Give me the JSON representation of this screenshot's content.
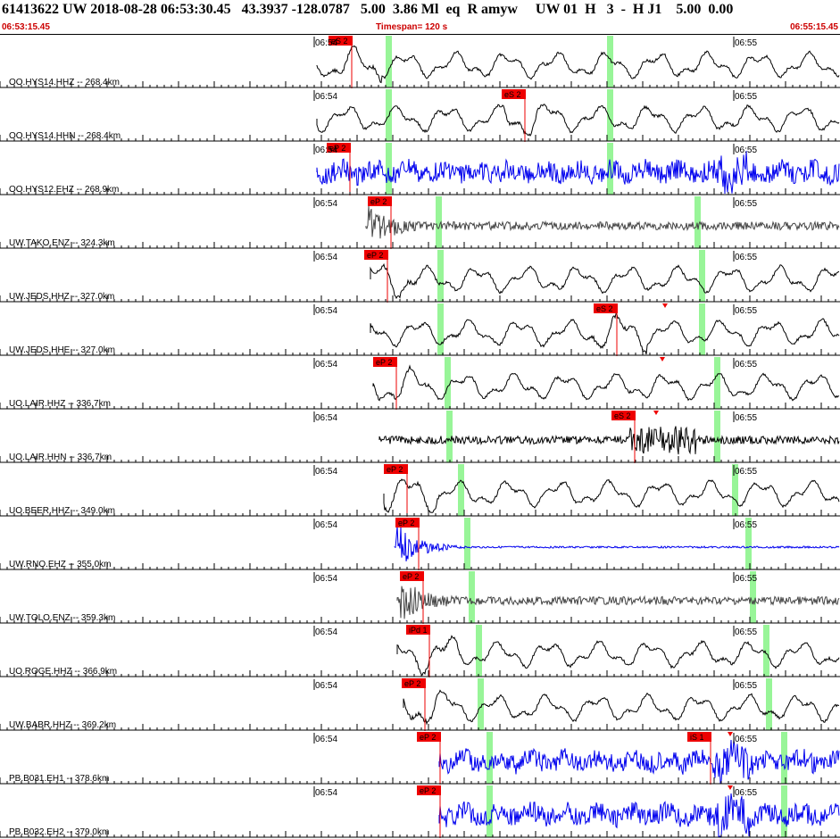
{
  "header": {
    "title": "61413622 UW 2018-08-28 06:53:30.45   43.3937 -128.0787   5.00  3.86 Ml  eq  R amyw     UW 01  H   3  -  H J1    5.00  0.00",
    "start_time": "06:53:15.45",
    "timespan": "Timespan= 120 s",
    "end_time": "06:55:15.45"
  },
  "time_labels": {
    "first": "06:54",
    "second": "06:55"
  },
  "colors": {
    "pick": "#ee0000",
    "window": "#98f598",
    "seis_black": "#000000",
    "seis_blue": "#0000ee",
    "seis_gray": "#444444"
  },
  "channels": [
    {
      "label": "OO.HYS14.HHZ -- 268.4km",
      "color": "seis_black",
      "type": "smooth",
      "picks": [
        {
          "label": "eS 2",
          "pos": "down"
        }
      ]
    },
    {
      "label": "OO.HYS14.HHN -- 268.4km",
      "color": "seis_black",
      "type": "smooth",
      "picks": [
        {
          "label": "eS 2",
          "pos": "down"
        }
      ]
    },
    {
      "label": "OO.HYS12.EHZ -- 268.9km",
      "color": "seis_blue",
      "type": "noisy",
      "picks": [
        {
          "label": "eP 2",
          "pos": "down"
        }
      ]
    },
    {
      "label": "UW.TAKO.ENZ -- 324.3km",
      "color": "seis_gray",
      "type": "burst",
      "picks": [
        {
          "label": "eP 2",
          "pos": "down"
        }
      ]
    },
    {
      "label": "UW.JEDS.HHZ -- 327.0km",
      "color": "seis_black",
      "type": "smooth",
      "picks": [
        {
          "label": "eP 2",
          "pos": "down"
        }
      ]
    },
    {
      "label": "UW.JEDS.HHE -- 327.0km",
      "color": "seis_black",
      "type": "smooth",
      "picks": [
        {
          "label": "eS 2",
          "pos": "down"
        }
      ]
    },
    {
      "label": "UO.LAIR.HHZ -- 336.7km",
      "color": "seis_black",
      "type": "smooth",
      "picks": [
        {
          "label": "eP 2",
          "pos": "down"
        }
      ]
    },
    {
      "label": "UO.LAIR.HHN -- 336.7km",
      "color": "seis_black",
      "type": "quiet",
      "picks": [
        {
          "label": "eS 2",
          "pos": "down"
        }
      ]
    },
    {
      "label": "UO.BEER.HHZ -- 349.0km",
      "color": "seis_black",
      "type": "smooth",
      "picks": [
        {
          "label": "eP 2",
          "pos": "down"
        }
      ]
    },
    {
      "label": "UW.RNO.EHZ -- 355.0km",
      "color": "seis_blue",
      "type": "spike",
      "picks": [
        {
          "label": "eP 2",
          "pos": "down"
        }
      ]
    },
    {
      "label": "UW.TOLO.ENZ -- 359.3km",
      "color": "seis_gray",
      "type": "burst",
      "picks": [
        {
          "label": "eP 2",
          "pos": "down"
        }
      ]
    },
    {
      "label": "UO.ROGE.HHZ -- 366.9km",
      "color": "seis_black",
      "type": "smooth",
      "picks": [
        {
          "label": "iPd 1",
          "pos": "down"
        }
      ]
    },
    {
      "label": "UW.BABR.HHZ -- 369.2km",
      "color": "seis_black",
      "type": "smooth",
      "picks": [
        {
          "label": "eP 2",
          "pos": "down"
        }
      ]
    },
    {
      "label": "PB.B031.EH1 -- 378.6km",
      "color": "seis_blue",
      "type": "noisy",
      "picks": [
        {
          "label": "eP 2",
          "pos": "down"
        },
        {
          "label": "iS 1",
          "pos": "down"
        }
      ]
    },
    {
      "label": "PB.B032.EH2 -- 379.0km",
      "color": "seis_blue",
      "type": "noisy",
      "picks": [
        {
          "label": "eP 2",
          "pos": "down"
        }
      ]
    }
  ]
}
